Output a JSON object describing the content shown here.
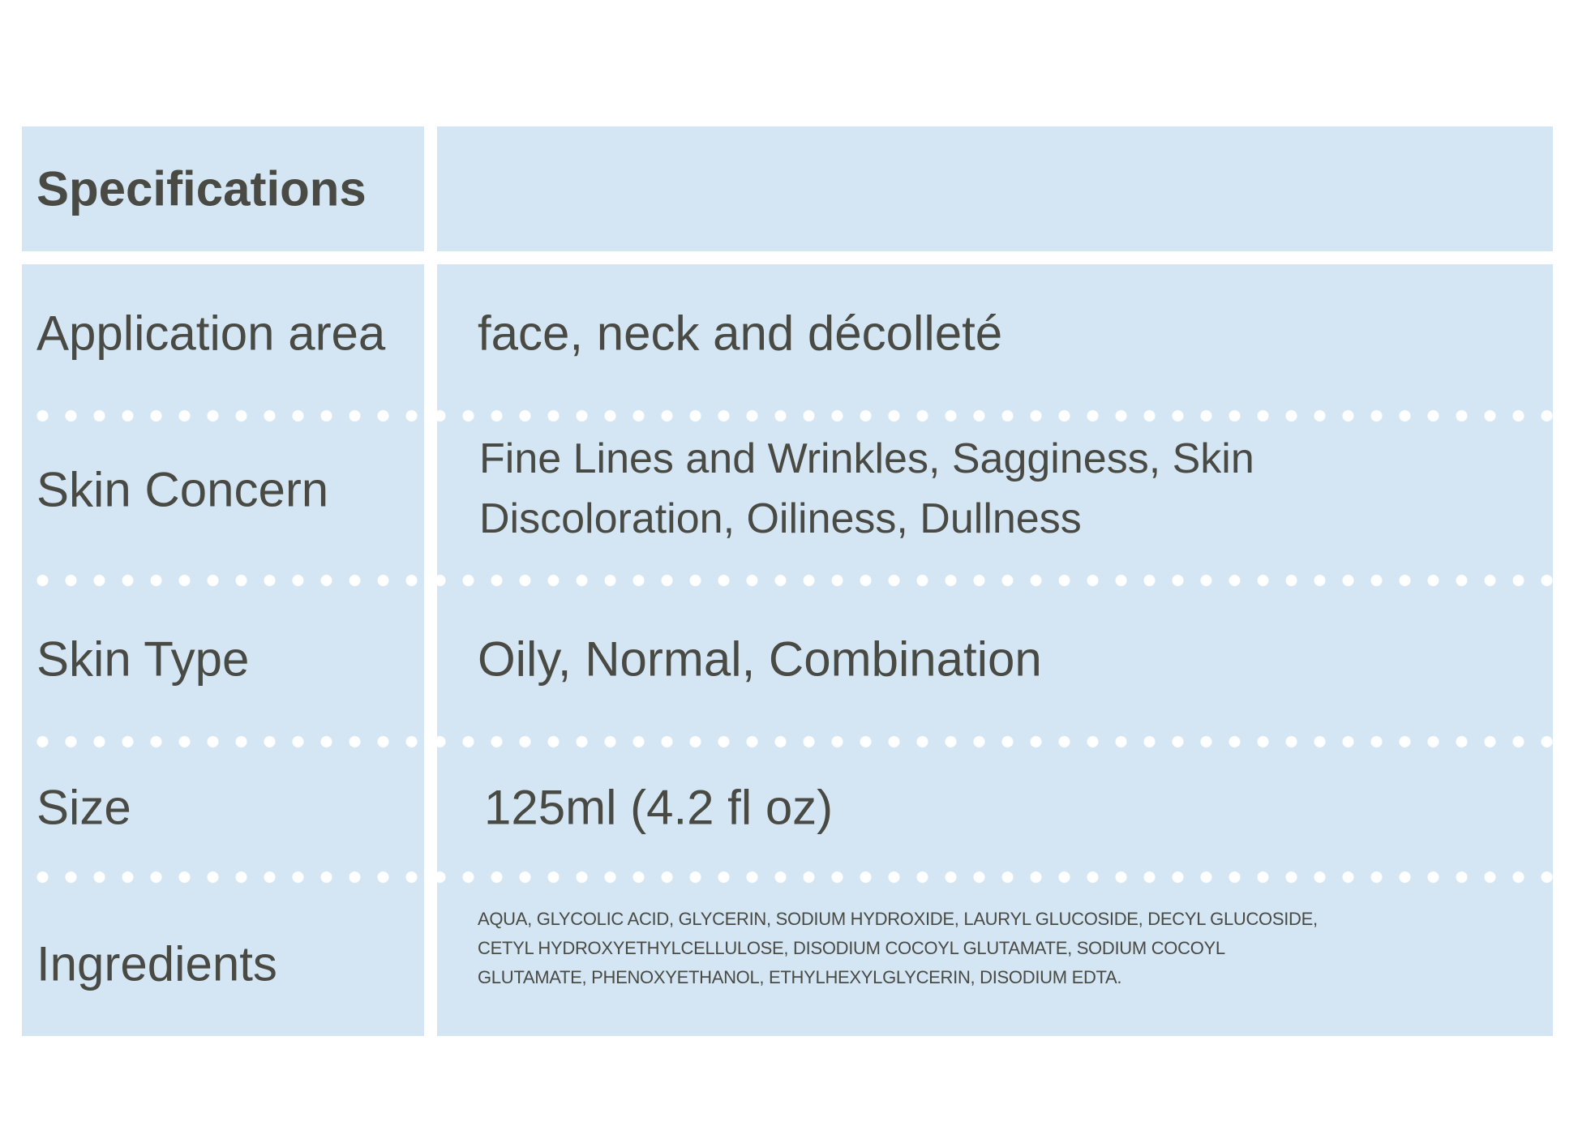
{
  "table": {
    "header": "Specifications",
    "rows": [
      {
        "label": "Application area",
        "value": "face, neck and décolleté"
      },
      {
        "label": "Skin Concern",
        "value_lines": [
          "Fine Lines and Wrinkles, Sagginess, Skin",
          "Discoloration, Oiliness, Dullness"
        ]
      },
      {
        "label": "Skin Type",
        "value": "Oily, Normal, Combination"
      },
      {
        "label": "Size",
        "value": "125ml (4.2 fl oz)"
      },
      {
        "label": "Ingredients",
        "value_lines": [
          "AQUA, GLYCOLIC ACID, GLYCERIN, SODIUM HYDROXIDE, LAURYL GLUCOSIDE, DECYL GLUCOSIDE,",
          "CETYL HYDROXYETHYLCELLULOSE, DISODIUM COCOYL GLUTAMATE, SODIUM COCOYL",
          "GLUTAMATE, PHENOXYETHANOL, ETHYLHEXYLGLYCERIN, DISODIUM EDTA."
        ]
      }
    ]
  },
  "colors": {
    "cell_background": "#d4e6f4",
    "text": "#4a4a44",
    "divider_dots": "#ffffff"
  }
}
